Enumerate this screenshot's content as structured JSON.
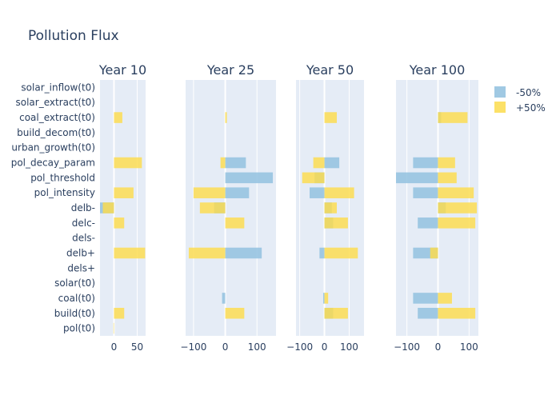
{
  "chart_data": {
    "type": "bar",
    "orientation": "horizontal",
    "barmode": "overlay",
    "title": "Pollution Flux",
    "categories": [
      "solar_inflow(t0)",
      "solar_extract(t0)",
      "coal_extract(t0)",
      "build_decom(t0)",
      "urban_growth(t0)",
      "pol_decay_param",
      "pol_threshold",
      "pol_intensity",
      "delb-",
      "delc-",
      "dels-",
      "delb+",
      "dels+",
      "solar(t0)",
      "coal(t0)",
      "build(t0)",
      "pol(t0)"
    ],
    "legend": {
      "placement": "top-right",
      "entries": [
        "-50%",
        "+50%"
      ]
    },
    "colors": {
      "minus": "#8fc0de",
      "plus": "#fcdc4c",
      "panel_bg": "#e5ecf6",
      "text": "#2a3f5f"
    },
    "grid": true,
    "panels": [
      {
        "title": "Year 10",
        "xlim": [
          -30,
          68
        ],
        "ticks": [
          0,
          50
        ],
        "tick_labels": [
          "0",
          "50"
        ],
        "series": [
          {
            "name": "-50%",
            "values": [
              0,
              0,
              0,
              0,
              0,
              0,
              0,
              0,
              -30,
              0,
              0,
              0,
              0,
              0,
              0,
              0,
              0
            ]
          },
          {
            "name": "+50%",
            "values": [
              0,
              0,
              18,
              0,
              0,
              60,
              0,
              42,
              -24,
              22,
              0,
              67,
              0,
              0,
              0,
              22,
              -1
            ]
          }
        ]
      },
      {
        "title": "Year 25",
        "xlim": [
          -125,
          160
        ],
        "ticks": [
          -100,
          0,
          100
        ],
        "tick_labels": [
          "−100",
          "0",
          "100"
        ],
        "series": [
          {
            "name": "-50%",
            "values": [
              0,
              0,
              0,
              0,
              0,
              65,
              150,
              75,
              -35,
              0,
              0,
              115,
              0,
              0,
              -10,
              0,
              0
            ]
          },
          {
            "name": "+50%",
            "values": [
              0,
              0,
              5,
              0,
              0,
              -15,
              0,
              -100,
              -80,
              60,
              0,
              -115,
              0,
              0,
              0,
              60,
              0
            ]
          }
        ]
      },
      {
        "title": "Year 50",
        "xlim": [
          -115,
          160
        ],
        "ticks": [
          -100,
          0,
          100
        ],
        "tick_labels": [
          "−100",
          "0",
          "100"
        ],
        "series": [
          {
            "name": "-50%",
            "values": [
              0,
              0,
              0,
              0,
              0,
              60,
              -40,
              -60,
              30,
              35,
              0,
              -20,
              0,
              0,
              -5,
              35,
              0
            ]
          },
          {
            "name": "+50%",
            "values": [
              0,
              0,
              50,
              0,
              0,
              -45,
              -90,
              120,
              50,
              95,
              0,
              135,
              0,
              0,
              15,
              95,
              0
            ]
          }
        ]
      },
      {
        "title": "Year 100",
        "xlim": [
          -135,
          130
        ],
        "ticks": [
          -100,
          0,
          100
        ],
        "tick_labels": [
          "−100",
          "0",
          "100"
        ],
        "series": [
          {
            "name": "-50%",
            "values": [
              0,
              0,
              10,
              0,
              0,
              -80,
              -135,
              -80,
              25,
              -65,
              0,
              -80,
              0,
              0,
              -80,
              -65,
              0
            ]
          },
          {
            "name": "+50%",
            "values": [
              0,
              0,
              95,
              0,
              0,
              55,
              60,
              115,
              125,
              120,
              0,
              -25,
              0,
              0,
              45,
              120,
              0
            ]
          }
        ]
      }
    ]
  }
}
